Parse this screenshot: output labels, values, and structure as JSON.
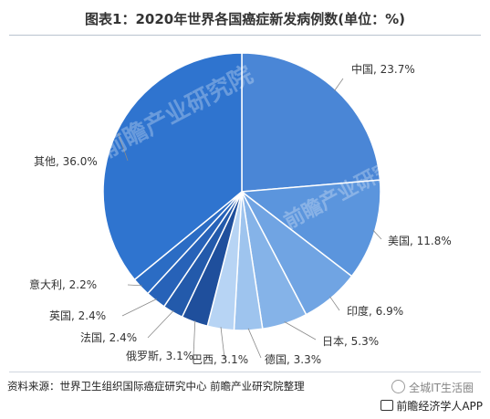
{
  "title": "图表1：2020年世界各国癌症新发病例数(单位：%)",
  "chart_data": {
    "type": "pie",
    "title": "图表1：2020年世界各国癌症新发病例数(单位：%)",
    "slices": [
      {
        "label": "中国",
        "value": 23.7,
        "color": "#4a86d6"
      },
      {
        "label": "美国",
        "value": 11.8,
        "color": "#5b95dd"
      },
      {
        "label": "印度",
        "value": 6.9,
        "color": "#70a4e3"
      },
      {
        "label": "日本",
        "value": 5.3,
        "color": "#85b3e8"
      },
      {
        "label": "德国",
        "value": 3.3,
        "color": "#9ec4ee"
      },
      {
        "label": "巴西",
        "value": 3.1,
        "color": "#b7d4f4"
      },
      {
        "label": "俄罗斯",
        "value": 3.1,
        "color": "#1f4f9c"
      },
      {
        "label": "法国",
        "value": 2.4,
        "color": "#235aab"
      },
      {
        "label": "英国",
        "value": 2.4,
        "color": "#2762b8"
      },
      {
        "label": "意大利",
        "value": 2.2,
        "color": "#2b6cc4"
      },
      {
        "label": "其他",
        "value": 36.0,
        "color": "#2f74cf"
      }
    ],
    "value_suffix": "%"
  },
  "source": "资料来源：世界卫生组织国际癌症研究中心 前瞻产业研究院整理",
  "watermarks": {
    "center": "前瞻产业研究院",
    "right": "前瞻产业研究院",
    "wechat": "全城IT生活圈",
    "app": "前瞻经济学人APP"
  }
}
